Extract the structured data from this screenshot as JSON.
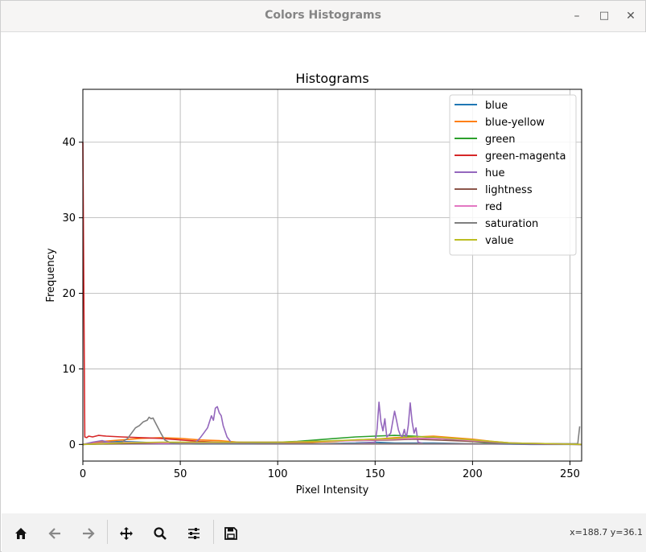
{
  "window": {
    "title": "Colors Histograms",
    "controls": {
      "minimize": "–",
      "maximize": "□",
      "close": "✕"
    }
  },
  "toolbar": {
    "buttons": [
      {
        "name": "home",
        "icon": "home-icon"
      },
      {
        "name": "back",
        "icon": "arrow-left-icon"
      },
      {
        "name": "forward",
        "icon": "arrow-right-icon"
      },
      {
        "name": "pan",
        "icon": "move-icon"
      },
      {
        "name": "zoom",
        "icon": "search-icon"
      },
      {
        "name": "configure-subplots",
        "icon": "sliders-icon"
      },
      {
        "name": "save",
        "icon": "save-icon"
      }
    ],
    "coordinates": "x=188.7 y=36.1"
  },
  "chart_data": {
    "type": "line",
    "title": "Histograms",
    "xlabel": "Pixel Intensity",
    "ylabel": "Frequency",
    "xlim": [
      0,
      256
    ],
    "ylim": [
      -2.2,
      47
    ],
    "xticks": [
      0,
      50,
      100,
      150,
      200,
      250
    ],
    "yticks": [
      0,
      10,
      20,
      30,
      40
    ],
    "grid": true,
    "legend_position": "upper-right",
    "series": [
      {
        "name": "blue",
        "color": "#1f77b4",
        "points": [
          [
            0,
            0
          ],
          [
            10,
            0.3
          ],
          [
            20,
            0.4
          ],
          [
            30,
            0.3
          ],
          [
            40,
            0.2
          ],
          [
            60,
            0.1
          ],
          [
            80,
            0.1
          ],
          [
            100,
            0.1
          ],
          [
            120,
            0.1
          ],
          [
            140,
            0.2
          ],
          [
            150,
            0.3
          ],
          [
            160,
            0.2
          ],
          [
            180,
            0.2
          ],
          [
            200,
            0.1
          ],
          [
            230,
            0.0
          ],
          [
            256,
            0.0
          ]
        ]
      },
      {
        "name": "blue-yellow",
        "color": "#ff7f0e",
        "points": [
          [
            0,
            0
          ],
          [
            5,
            0.2
          ],
          [
            10,
            0.4
          ],
          [
            20,
            0.6
          ],
          [
            30,
            0.8
          ],
          [
            40,
            0.9
          ],
          [
            50,
            0.8
          ],
          [
            60,
            0.6
          ],
          [
            70,
            0.5
          ],
          [
            80,
            0.3
          ],
          [
            90,
            0.2
          ],
          [
            100,
            0.2
          ],
          [
            110,
            0.2
          ],
          [
            120,
            0.3
          ],
          [
            130,
            0.4
          ],
          [
            140,
            0.6
          ],
          [
            150,
            0.7
          ],
          [
            160,
            0.9
          ],
          [
            170,
            1.0
          ],
          [
            180,
            1.1
          ],
          [
            190,
            0.9
          ],
          [
            200,
            0.7
          ],
          [
            210,
            0.4
          ],
          [
            220,
            0.2
          ],
          [
            230,
            0.1
          ],
          [
            256,
            0
          ]
        ]
      },
      {
        "name": "green",
        "color": "#2ca02c",
        "points": [
          [
            0,
            0
          ],
          [
            10,
            0.1
          ],
          [
            20,
            0.2
          ],
          [
            40,
            0.2
          ],
          [
            60,
            0.1
          ],
          [
            80,
            0.2
          ],
          [
            100,
            0.3
          ],
          [
            110,
            0.4
          ],
          [
            120,
            0.6
          ],
          [
            130,
            0.8
          ],
          [
            140,
            1.0
          ],
          [
            150,
            1.1
          ],
          [
            160,
            1.2
          ],
          [
            170,
            1.1
          ],
          [
            180,
            0.9
          ],
          [
            190,
            0.6
          ],
          [
            200,
            0.4
          ],
          [
            210,
            0.2
          ],
          [
            220,
            0.1
          ],
          [
            256,
            0
          ]
        ]
      },
      {
        "name": "green-magenta",
        "color": "#d62728",
        "points": [
          [
            0,
            40
          ],
          [
            1,
            1.0
          ],
          [
            2,
            0.9
          ],
          [
            3,
            1.1
          ],
          [
            5,
            1.0
          ],
          [
            8,
            1.2
          ],
          [
            12,
            1.1
          ],
          [
            20,
            1.0
          ],
          [
            30,
            0.9
          ],
          [
            40,
            0.8
          ],
          [
            50,
            0.6
          ],
          [
            60,
            0.4
          ],
          [
            70,
            0.3
          ],
          [
            80,
            0.2
          ],
          [
            90,
            0.1
          ],
          [
            100,
            0.1
          ],
          [
            110,
            0.1
          ],
          [
            120,
            0.1
          ],
          [
            140,
            0.1
          ],
          [
            160,
            0.1
          ],
          [
            180,
            0.1
          ],
          [
            200,
            0.1
          ],
          [
            256,
            0
          ]
        ]
      },
      {
        "name": "hue",
        "color": "#9467bd",
        "points": [
          [
            0,
            0
          ],
          [
            5,
            0.3
          ],
          [
            10,
            0.5
          ],
          [
            15,
            0.2
          ],
          [
            20,
            0.1
          ],
          [
            30,
            0.1
          ],
          [
            50,
            0.1
          ],
          [
            58,
            0.3
          ],
          [
            60,
            0.8
          ],
          [
            62,
            1.5
          ],
          [
            64,
            2.2
          ],
          [
            66,
            3.8
          ],
          [
            67,
            3.2
          ],
          [
            68,
            4.8
          ],
          [
            69,
            5.0
          ],
          [
            70,
            4.2
          ],
          [
            71,
            3.8
          ],
          [
            72,
            2.5
          ],
          [
            74,
            1.0
          ],
          [
            76,
            0.3
          ],
          [
            80,
            0.1
          ],
          [
            100,
            0.1
          ],
          [
            140,
            0.1
          ],
          [
            150,
            0.3
          ],
          [
            151,
            2.0
          ],
          [
            152,
            5.6
          ],
          [
            153,
            3.0
          ],
          [
            154,
            1.8
          ],
          [
            155,
            3.4
          ],
          [
            156,
            1.0
          ],
          [
            158,
            1.5
          ],
          [
            159,
            3.0
          ],
          [
            160,
            4.4
          ],
          [
            161,
            3.2
          ],
          [
            162,
            1.9
          ],
          [
            163,
            1.2
          ],
          [
            164,
            1.0
          ],
          [
            165,
            2.0
          ],
          [
            166,
            0.8
          ],
          [
            167,
            2.5
          ],
          [
            168,
            5.5
          ],
          [
            169,
            3.0
          ],
          [
            170,
            1.5
          ],
          [
            171,
            2.2
          ],
          [
            172,
            0.3
          ],
          [
            175,
            0.1
          ],
          [
            200,
            0.1
          ],
          [
            256,
            0
          ]
        ]
      },
      {
        "name": "lightness",
        "color": "#8c564b",
        "points": [
          [
            0,
            0
          ],
          [
            20,
            0.1
          ],
          [
            40,
            0.2
          ],
          [
            60,
            0.2
          ],
          [
            80,
            0.3
          ],
          [
            100,
            0.3
          ],
          [
            120,
            0.4
          ],
          [
            140,
            0.5
          ],
          [
            160,
            0.6
          ],
          [
            170,
            0.7
          ],
          [
            180,
            0.6
          ],
          [
            200,
            0.4
          ],
          [
            220,
            0.2
          ],
          [
            240,
            0.1
          ],
          [
            256,
            0
          ]
        ]
      },
      {
        "name": "red",
        "color": "#e377c2",
        "points": [
          [
            0,
            0
          ],
          [
            10,
            0.2
          ],
          [
            20,
            0.3
          ],
          [
            40,
            0.2
          ],
          [
            60,
            0.2
          ],
          [
            80,
            0.3
          ],
          [
            100,
            0.3
          ],
          [
            120,
            0.4
          ],
          [
            140,
            0.5
          ],
          [
            160,
            0.7
          ],
          [
            170,
            0.8
          ],
          [
            180,
            0.8
          ],
          [
            190,
            0.7
          ],
          [
            200,
            0.5
          ],
          [
            220,
            0.2
          ],
          [
            240,
            0.1
          ],
          [
            256,
            0
          ]
        ]
      },
      {
        "name": "saturation",
        "color": "#7f7f7f",
        "points": [
          [
            0,
            0
          ],
          [
            10,
            0.1
          ],
          [
            20,
            0.3
          ],
          [
            23,
            0.8
          ],
          [
            25,
            1.5
          ],
          [
            27,
            2.2
          ],
          [
            29,
            2.5
          ],
          [
            31,
            3.0
          ],
          [
            33,
            3.2
          ],
          [
            34,
            3.6
          ],
          [
            35,
            3.4
          ],
          [
            36,
            3.5
          ],
          [
            37,
            3.0
          ],
          [
            38,
            2.5
          ],
          [
            40,
            1.5
          ],
          [
            42,
            0.6
          ],
          [
            45,
            0.2
          ],
          [
            50,
            0.1
          ],
          [
            80,
            0.1
          ],
          [
            100,
            0.1
          ],
          [
            150,
            0.1
          ],
          [
            200,
            0.1
          ],
          [
            240,
            0.1
          ],
          [
            254,
            0.1
          ],
          [
            255,
            2.4
          ]
        ]
      },
      {
        "name": "value",
        "color": "#bcbd22",
        "points": [
          [
            0,
            0
          ],
          [
            10,
            0.1
          ],
          [
            20,
            0.2
          ],
          [
            40,
            0.3
          ],
          [
            60,
            0.3
          ],
          [
            80,
            0.3
          ],
          [
            100,
            0.3
          ],
          [
            120,
            0.4
          ],
          [
            140,
            0.6
          ],
          [
            160,
            0.8
          ],
          [
            170,
            1.0
          ],
          [
            180,
            1.0
          ],
          [
            190,
            0.8
          ],
          [
            200,
            0.6
          ],
          [
            210,
            0.4
          ],
          [
            220,
            0.2
          ],
          [
            240,
            0.1
          ],
          [
            256,
            0
          ]
        ]
      }
    ]
  }
}
